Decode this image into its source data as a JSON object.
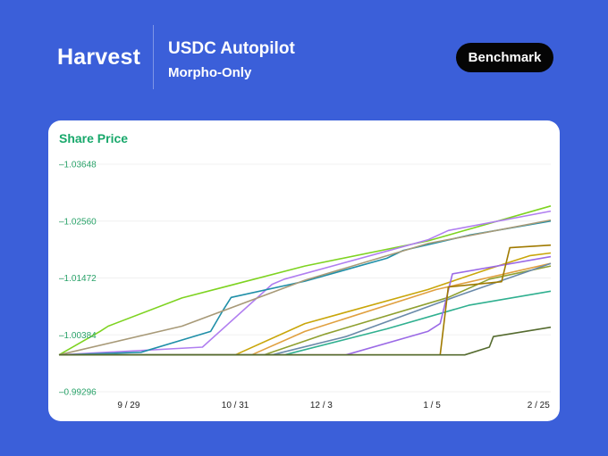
{
  "header": {
    "brand": "Harvest",
    "title": "USDC Autopilot",
    "subtitle": "Morpho-Only",
    "benchmark_label": "Benchmark"
  },
  "colors": {
    "background": "#3b5fd9",
    "accent_green": "#18a86b",
    "button_bg": "#050505"
  },
  "chart_data": {
    "type": "line",
    "title": "Share Price",
    "yticks": [
      "1.03648",
      "1.02560",
      "1.01472",
      "1.00384",
      "0.99296"
    ],
    "ylim": [
      0.99296,
      1.03648
    ],
    "xticks": [
      "9 / 29",
      "10 / 31",
      "12 / 3",
      "1 / 5",
      "2 / 25"
    ],
    "xtick_positions": [
      0.17,
      0.43,
      0.64,
      0.91,
      1.17
    ],
    "xlim": [
      0,
      1.2
    ],
    "grid": true,
    "series": [
      {
        "color": "#7ed321",
        "x": [
          0,
          0.1,
          0.12,
          0.3,
          0.6,
          0.9,
          1.2
        ],
        "y": [
          1.0,
          1.0045,
          1.0055,
          1.0109,
          1.017,
          1.0218,
          1.0285
        ]
      },
      {
        "color": "#b07ef0",
        "x": [
          0,
          0.35,
          0.52,
          0.55,
          0.9,
          0.95,
          1.2
        ],
        "y": [
          1.0,
          1.0015,
          1.0135,
          1.0145,
          1.022,
          1.0238,
          1.0275
        ]
      },
      {
        "color": "#1f8fa8",
        "x": [
          0,
          0.2,
          0.37,
          0.4,
          0.42,
          0.6,
          0.8,
          0.84,
          1.0,
          1.2
        ],
        "y": [
          1.0,
          1.0005,
          1.0045,
          1.0085,
          1.011,
          1.0141,
          1.0185,
          1.02,
          1.0229,
          1.0256
        ]
      },
      {
        "color": "#a89a78",
        "x": [
          0,
          0.3,
          0.6,
          0.9,
          1.2
        ],
        "y": [
          1.0,
          1.0055,
          1.0143,
          1.0213,
          1.0258
        ]
      },
      {
        "color": "#c9a60a",
        "x": [
          0,
          0.43,
          0.6,
          0.9,
          1.05,
          1.15,
          1.2
        ],
        "y": [
          1.0,
          1.0,
          1.006,
          1.0125,
          1.0165,
          1.019,
          1.0195
        ]
      },
      {
        "color": "#e0a040",
        "x": [
          0,
          0.47,
          0.6,
          0.92,
          1.2
        ],
        "y": [
          1.0,
          1.0,
          1.0045,
          1.0125,
          1.0175
        ]
      },
      {
        "color": "#8fa030",
        "x": [
          0,
          0.5,
          0.65,
          0.95,
          1.05,
          1.2
        ],
        "y": [
          1.0,
          1.0,
          1.004,
          1.011,
          1.0145,
          1.017
        ]
      },
      {
        "color": "#6a8aaa",
        "x": [
          0,
          0.52,
          0.7,
          0.98,
          1.2
        ],
        "y": [
          1.0,
          1.0,
          1.0035,
          1.0115,
          1.0175
        ]
      },
      {
        "color": "#30b090",
        "x": [
          0,
          0.55,
          0.8,
          1.0,
          1.2
        ],
        "y": [
          1.0,
          1.0,
          1.005,
          1.0095,
          1.0122
        ]
      },
      {
        "color": "#9b6ae6",
        "x": [
          0,
          0.7,
          0.9,
          0.93,
          0.96,
          1.2
        ],
        "y": [
          1.0,
          1.0,
          1.0045,
          1.006,
          1.0155,
          1.0188
        ]
      },
      {
        "color": "#a07a00",
        "x": [
          0,
          0.93,
          0.95,
          1.08,
          1.1,
          1.2
        ],
        "y": [
          1.0,
          1.0,
          1.013,
          1.014,
          1.0205,
          1.021
        ]
      },
      {
        "color": "#556b2f",
        "x": [
          0,
          0.99,
          1.05,
          1.06,
          1.2
        ],
        "y": [
          1.0,
          1.0,
          1.0015,
          1.0035,
          1.0053
        ]
      }
    ]
  }
}
